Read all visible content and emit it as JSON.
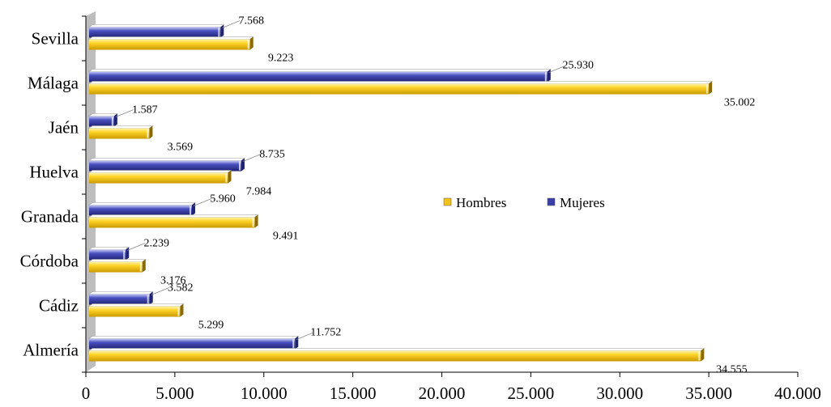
{
  "chart_data": {
    "type": "bar",
    "orientation": "horizontal",
    "categories": [
      "Almería",
      "Cádiz",
      "Córdoba",
      "Granada",
      "Huelva",
      "Jaén",
      "Málaga",
      "Sevilla"
    ],
    "series": [
      {
        "name": "Hombres",
        "values": [
          34555,
          5299,
          3176,
          9491,
          7984,
          3569,
          35002,
          9223
        ],
        "labels": [
          "34.555",
          "5.299",
          "3.176",
          "9.491",
          "7.984",
          "3.569",
          "35.002",
          "9.223"
        ],
        "color": "#F2C21A"
      },
      {
        "name": "Mujeres",
        "values": [
          11752,
          3582,
          2239,
          5960,
          8735,
          1587,
          25930,
          7568
        ],
        "labels": [
          "11.752",
          "3.582",
          "2.239",
          "5.960",
          "8.735",
          "1.587",
          "25.930",
          "7.568"
        ],
        "color": "#3A3FA8"
      }
    ],
    "xlim": [
      0,
      40000
    ],
    "xticks": [
      0,
      5000,
      10000,
      15000,
      20000,
      25000,
      30000,
      35000,
      40000
    ],
    "xtick_labels": [
      "0",
      "5.000",
      "10.000",
      "15.000",
      "20.000",
      "25.000",
      "30.000",
      "35.000",
      "40.000"
    ],
    "legend": {
      "position": "center-right",
      "entries": [
        "Hombres",
        "Mujeres"
      ]
    },
    "grid": false,
    "title": "",
    "xlabel": "",
    "ylabel": ""
  }
}
